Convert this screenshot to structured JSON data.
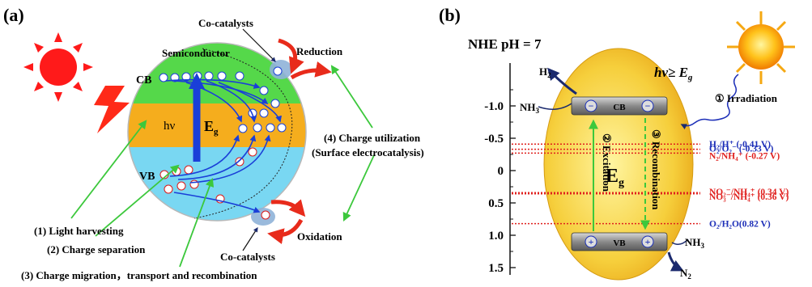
{
  "panel_a": {
    "label": "(a)",
    "cocatalyst_top": "Co-catalysts",
    "cocatalyst_bottom": "Co-catalysts",
    "reduction": "Reduction",
    "oxidation": "Oxidation",
    "semiconductor": "Semiconductor",
    "cb": "CB",
    "vb": "VB",
    "hv": "hν",
    "eg": "E",
    "eg_sub": "g",
    "step1": "(1) Light harvesting",
    "step2": "(2) Charge separation",
    "step3": "(3) Charge migration，transport and recombination",
    "step4_line1": "(4) Charge utilization",
    "step4_line2": "(Surface electrocatalysis)",
    "colors": {
      "cb": "#55d84a",
      "gap": "#f5ad1d",
      "vb": "#79d7f2",
      "arrow": "#1a3fd8",
      "pointer": "#3cc83c"
    }
  },
  "panel_b": {
    "label": "(b)",
    "nhe_title": "NHE pH = 7",
    "axis_ticks": [
      "-1.0",
      "-0.5",
      "0",
      "0.5",
      "1.0",
      "1.5"
    ],
    "tick_values": [
      -1.0,
      -0.5,
      0,
      0.5,
      1.0,
      1.5
    ],
    "cb": "CB",
    "vb": "VB",
    "minus": "−",
    "plus": "+",
    "excitation": "② Excitation",
    "recombination": "③ Recombination",
    "eg": "E",
    "eg_sub": "g",
    "h2": "H",
    "h2_sub": "2",
    "nh3_left": "NH",
    "nh3_left_sub": "3",
    "nh3_right": "NH",
    "nh3_right_sub": "3",
    "n2": "N",
    "n2_sub": "2",
    "hv_label": "hν≥ E",
    "hv_sub": "g",
    "irradiation": "① Irradiation",
    "levels": [
      {
        "label": "H₂/H⁺ (-0.41 V)",
        "potential": -0.41,
        "color": "#1d2fb8"
      },
      {
        "label": "O₂/O₂⁻ (-0.33 V)",
        "potential": -0.33,
        "color": "#1d2fb8"
      },
      {
        "label": "N₂/NH₄⁺ (-0.27 V)",
        "potential": -0.27,
        "color": "#e0201e"
      },
      {
        "label": "NO₂⁻/NH₄⁺ (0.34 V)",
        "potential": 0.34,
        "color": "#e0201e"
      },
      {
        "label": "NO₃⁻/NH₄⁺ (0.36 V)",
        "potential": 0.36,
        "color": "#e0201e"
      },
      {
        "label": "O₂/H₂O(0.82 V)",
        "potential": 0.82,
        "color": "#1d2fb8"
      }
    ]
  }
}
